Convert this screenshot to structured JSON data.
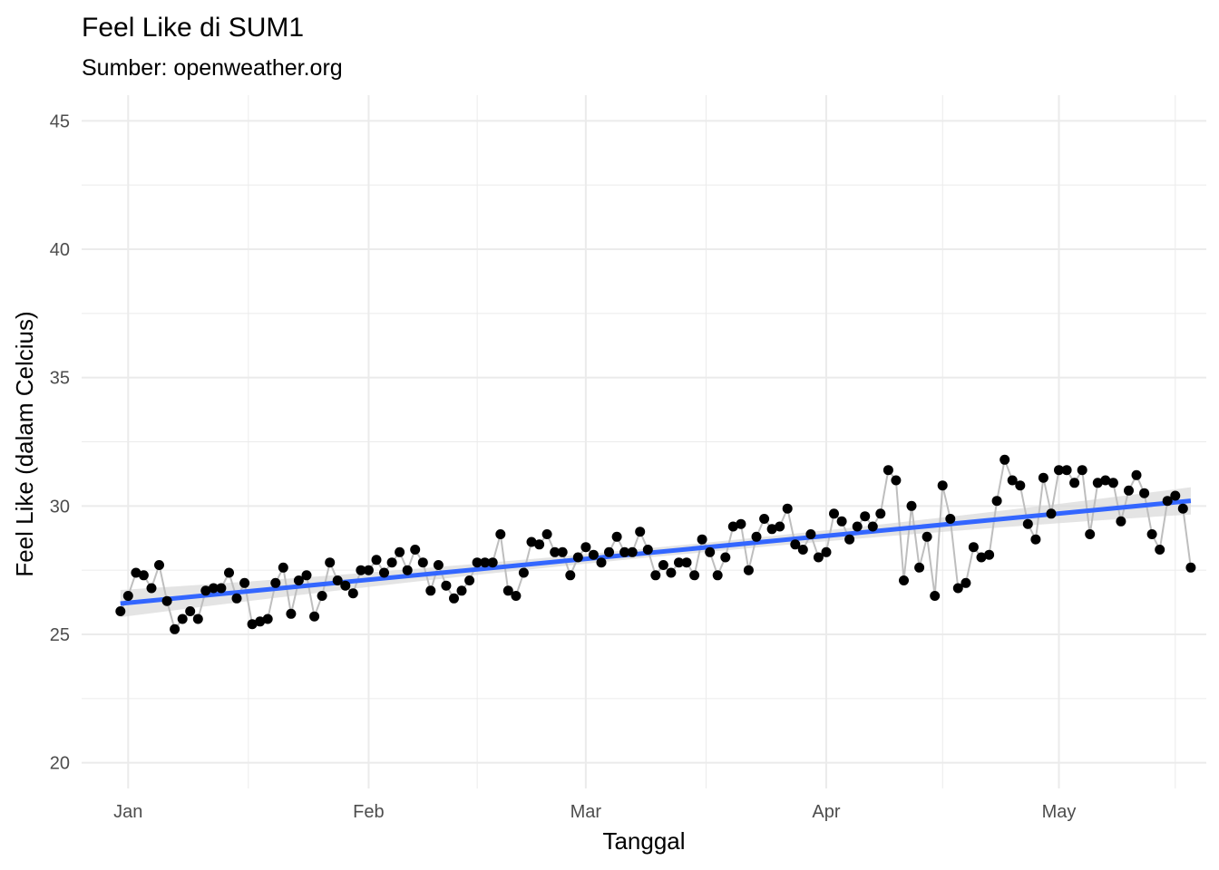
{
  "chart_data": {
    "type": "line",
    "title": "Feel Like di SUM1",
    "subtitle": "Sumber: openweather.org",
    "xlabel": "Tanggal",
    "ylabel": "Feel Like (dalam Celcius)",
    "x_ticks": [
      {
        "label": "Jan",
        "date": "2023-01-01"
      },
      {
        "label": "Feb",
        "date": "2023-02-01"
      },
      {
        "label": "Mar",
        "date": "2023-03-01"
      },
      {
        "label": "Apr",
        "date": "2023-04-01"
      },
      {
        "label": "May",
        "date": "2023-05-01"
      }
    ],
    "y_ticks": [
      20,
      25,
      30,
      35,
      40,
      45
    ],
    "ylim": [
      19,
      46
    ],
    "xlim": [
      "2022-12-26",
      "2023-05-20"
    ],
    "grid": true,
    "colors": {
      "points": "#000000",
      "line": "#bebebe",
      "trend": "#3366ff",
      "band": "#d9d9d9",
      "grid": "#ebebeb"
    },
    "series": [
      {
        "type": "line+points",
        "dates": [
          "2022-12-31",
          "2023-01-01",
          "2023-01-02",
          "2023-01-03",
          "2023-01-04",
          "2023-01-05",
          "2023-01-06",
          "2023-01-07",
          "2023-01-08",
          "2023-01-09",
          "2023-01-10",
          "2023-01-11",
          "2023-01-12",
          "2023-01-13",
          "2023-01-14",
          "2023-01-15",
          "2023-01-16",
          "2023-01-17",
          "2023-01-18",
          "2023-01-19",
          "2023-01-20",
          "2023-01-21",
          "2023-01-22",
          "2023-01-23",
          "2023-01-24",
          "2023-01-25",
          "2023-01-26",
          "2023-01-27",
          "2023-01-28",
          "2023-01-29",
          "2023-01-30",
          "2023-01-31",
          "2023-02-01",
          "2023-02-02",
          "2023-02-03",
          "2023-02-04",
          "2023-02-05",
          "2023-02-06",
          "2023-02-07",
          "2023-02-08",
          "2023-02-09",
          "2023-02-10",
          "2023-02-11",
          "2023-02-12",
          "2023-02-13",
          "2023-02-14",
          "2023-02-15",
          "2023-02-16",
          "2023-02-17",
          "2023-02-18",
          "2023-02-19",
          "2023-02-20",
          "2023-02-21",
          "2023-02-22",
          "2023-02-23",
          "2023-02-24",
          "2023-02-25",
          "2023-02-26",
          "2023-02-27",
          "2023-02-28",
          "2023-03-01",
          "2023-03-02",
          "2023-03-03",
          "2023-03-04",
          "2023-03-05",
          "2023-03-06",
          "2023-03-07",
          "2023-03-08",
          "2023-03-09",
          "2023-03-10",
          "2023-03-11",
          "2023-03-12",
          "2023-03-13",
          "2023-03-14",
          "2023-03-15",
          "2023-03-16",
          "2023-03-17",
          "2023-03-18",
          "2023-03-19",
          "2023-03-20",
          "2023-03-21",
          "2023-03-22",
          "2023-03-23",
          "2023-03-24",
          "2023-03-25",
          "2023-03-26",
          "2023-03-27",
          "2023-03-28",
          "2023-03-29",
          "2023-03-30",
          "2023-03-31",
          "2023-04-01",
          "2023-04-02",
          "2023-04-03",
          "2023-04-04",
          "2023-04-05",
          "2023-04-06",
          "2023-04-07",
          "2023-04-08",
          "2023-04-09",
          "2023-04-10",
          "2023-04-11",
          "2023-04-12",
          "2023-04-13",
          "2023-04-14",
          "2023-04-15",
          "2023-04-16",
          "2023-04-17",
          "2023-04-18",
          "2023-04-19",
          "2023-04-20",
          "2023-04-21",
          "2023-04-22",
          "2023-04-23",
          "2023-04-24",
          "2023-04-25",
          "2023-04-26",
          "2023-04-27",
          "2023-04-28",
          "2023-04-29",
          "2023-04-30",
          "2023-05-01",
          "2023-05-02",
          "2023-05-03",
          "2023-05-04",
          "2023-05-05",
          "2023-05-06",
          "2023-05-07",
          "2023-05-08",
          "2023-05-09",
          "2023-05-10",
          "2023-05-11",
          "2023-05-12",
          "2023-05-13",
          "2023-05-14",
          "2023-05-15",
          "2023-05-16",
          "2023-05-17",
          "2023-05-18"
        ],
        "values": [
          25.9,
          26.5,
          27.4,
          27.3,
          26.8,
          27.7,
          26.3,
          25.2,
          25.6,
          25.9,
          25.6,
          26.7,
          26.8,
          26.8,
          27.4,
          26.4,
          27.0,
          25.4,
          25.5,
          25.6,
          27.0,
          27.6,
          25.8,
          27.1,
          27.3,
          25.7,
          26.5,
          27.8,
          27.1,
          26.9,
          26.6,
          27.5,
          27.5,
          27.9,
          27.4,
          27.8,
          28.2,
          27.5,
          28.3,
          27.8,
          26.7,
          27.7,
          26.9,
          26.4,
          26.7,
          27.1,
          27.8,
          27.8,
          27.8,
          28.9,
          26.7,
          26.5,
          27.4,
          28.6,
          28.5,
          28.9,
          28.2,
          28.2,
          27.3,
          28.0,
          28.4,
          28.1,
          27.8,
          28.2,
          28.8,
          28.2,
          28.2,
          29.0,
          28.3,
          27.3,
          27.7,
          27.4,
          27.8,
          27.8,
          27.3,
          28.7,
          28.2,
          27.3,
          28.0,
          29.2,
          29.3,
          27.5,
          28.8,
          29.5,
          29.1,
          29.2,
          29.9,
          28.5,
          28.3,
          28.9,
          28.0,
          28.2,
          29.7,
          29.4,
          28.7,
          29.2,
          29.6,
          29.2,
          29.7,
          31.4,
          31.0,
          27.1,
          30.0,
          27.6,
          28.8,
          26.5,
          30.8,
          29.5,
          26.8,
          27.0,
          28.4,
          28.0,
          28.1,
          30.2,
          31.8,
          31.0,
          30.8,
          29.3,
          28.7,
          31.1,
          29.7,
          31.4,
          31.4,
          30.9,
          31.4,
          28.9,
          30.9,
          31.0,
          30.9,
          29.4,
          30.6,
          31.2,
          30.5,
          28.9,
          28.3,
          30.2,
          30.4,
          29.9,
          27.6
        ]
      },
      {
        "type": "linear-trend",
        "dates": [
          "2022-12-31",
          "2023-05-18"
        ],
        "values": [
          26.2,
          30.2
        ]
      }
    ]
  }
}
